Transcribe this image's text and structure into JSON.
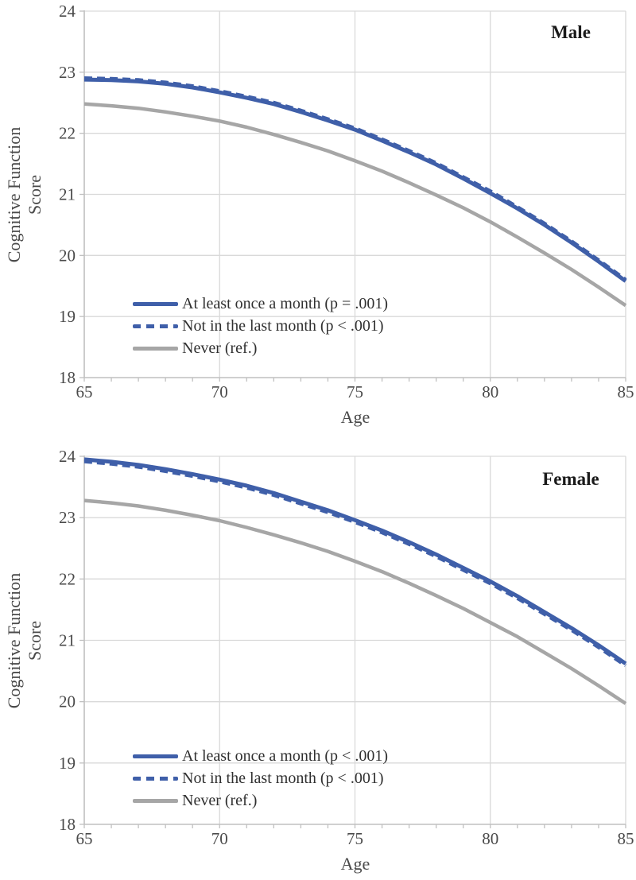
{
  "style": {
    "line_blue": "#3F5FA9",
    "line_gray": "#A6A6A6",
    "grid_color": "#D9D9D9",
    "axis_color": "#C0C0C0",
    "tick_text_color": "#4A4A4A"
  },
  "chart_data": [
    {
      "type": "line",
      "panel_label": "Male",
      "xlabel": "Age",
      "ylabel_line1": "Cognitive Function",
      "ylabel_line2": "Score",
      "xlim": [
        65,
        85
      ],
      "ylim": [
        18,
        24
      ],
      "x_ticks": [
        65,
        70,
        75,
        80,
        85
      ],
      "y_ticks": [
        18,
        19,
        20,
        21,
        22,
        23,
        24
      ],
      "grid": true,
      "legend_position": "lower-left-inside",
      "x": [
        65,
        66,
        67,
        68,
        69,
        70,
        71,
        72,
        73,
        74,
        75,
        76,
        77,
        78,
        79,
        80,
        81,
        82,
        83,
        84,
        85
      ],
      "series": [
        {
          "name": "At least once a month (p = .001)",
          "style": "solid",
          "color": "#3F5FA9",
          "width": 5,
          "values": [
            22.88,
            22.87,
            22.85,
            22.81,
            22.75,
            22.67,
            22.58,
            22.48,
            22.35,
            22.21,
            22.06,
            21.88,
            21.69,
            21.49,
            21.26,
            21.02,
            20.77,
            20.5,
            20.21,
            19.9,
            19.58
          ]
        },
        {
          "name": "Not in the last month (p < .001)",
          "style": "dashed",
          "color": "#3F5FA9",
          "width": 5,
          "values": [
            22.9,
            22.89,
            22.87,
            22.83,
            22.77,
            22.69,
            22.6,
            22.5,
            22.37,
            22.23,
            22.08,
            21.9,
            21.71,
            21.51,
            21.28,
            21.05,
            20.79,
            20.52,
            20.23,
            19.92,
            19.6
          ]
        },
        {
          "name": "Never (ref.)",
          "style": "solid",
          "color": "#A6A6A6",
          "width": 4.5,
          "values": [
            22.48,
            22.45,
            22.41,
            22.35,
            22.28,
            22.2,
            22.1,
            21.98,
            21.85,
            21.71,
            21.55,
            21.38,
            21.19,
            20.99,
            20.78,
            20.55,
            20.3,
            20.04,
            19.77,
            19.48,
            19.18
          ]
        }
      ]
    },
    {
      "type": "line",
      "panel_label": "Female",
      "xlabel": "Age",
      "ylabel_line1": "Cognitive Function",
      "ylabel_line2": "Score",
      "xlim": [
        65,
        85
      ],
      "ylim": [
        18,
        24
      ],
      "x_ticks": [
        65,
        70,
        75,
        80,
        85
      ],
      "y_ticks": [
        18,
        19,
        20,
        21,
        22,
        23,
        24
      ],
      "grid": true,
      "legend_position": "lower-left-inside",
      "x": [
        65,
        66,
        67,
        68,
        69,
        70,
        71,
        72,
        73,
        74,
        75,
        76,
        77,
        78,
        79,
        80,
        81,
        82,
        83,
        84,
        85
      ],
      "series": [
        {
          "name": "At least once a month (p < .001)",
          "style": "solid",
          "color": "#3F5FA9",
          "width": 5,
          "values": [
            23.95,
            23.91,
            23.86,
            23.79,
            23.71,
            23.62,
            23.52,
            23.4,
            23.26,
            23.12,
            22.96,
            22.79,
            22.6,
            22.4,
            22.18,
            21.96,
            21.72,
            21.46,
            21.2,
            20.92,
            20.62
          ]
        },
        {
          "name": "Not in the last month (p < .001)",
          "style": "dashed",
          "color": "#3F5FA9",
          "width": 5,
          "values": [
            23.92,
            23.88,
            23.83,
            23.76,
            23.68,
            23.59,
            23.49,
            23.37,
            23.23,
            23.09,
            22.93,
            22.76,
            22.57,
            22.37,
            22.15,
            21.93,
            21.69,
            21.43,
            21.17,
            20.89,
            20.59
          ]
        },
        {
          "name": "Never (ref.)",
          "style": "solid",
          "color": "#A6A6A6",
          "width": 4.5,
          "values": [
            23.28,
            23.24,
            23.19,
            23.12,
            23.04,
            22.95,
            22.84,
            22.72,
            22.59,
            22.45,
            22.29,
            22.12,
            21.93,
            21.73,
            21.52,
            21.29,
            21.06,
            20.8,
            20.54,
            20.26,
            19.97
          ]
        }
      ]
    }
  ]
}
